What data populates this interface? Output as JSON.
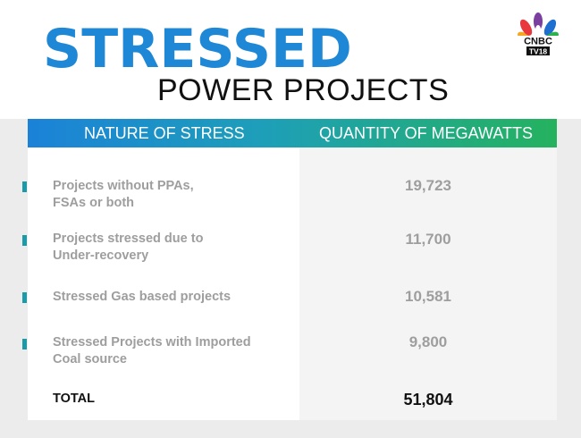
{
  "title": {
    "main": "STRESSED",
    "sub": "POWER PROJECTS"
  },
  "logo": {
    "line1": "CNBC",
    "line2": "TV18",
    "icon": "peacock-logo"
  },
  "table": {
    "headers": {
      "left": "NATURE OF STRESS",
      "right": "QUANTITY OF MEGAWATTS"
    },
    "rows": [
      {
        "label_line1": "Projects without PPAs,",
        "label_line2": "FSAs or both",
        "value": "19,723"
      },
      {
        "label_line1": "Projects stressed due to",
        "label_line2": "Under-recovery",
        "value": "11,700"
      },
      {
        "label_line1": "Stressed Gas based projects",
        "label_line2": "",
        "value": "10,581"
      },
      {
        "label_line1": "Stressed Projects with Imported",
        "label_line2": "Coal source",
        "value": "9,800"
      }
    ],
    "total": {
      "label": "TOTAL",
      "value": "51,804"
    }
  },
  "colors": {
    "title_blue": "#1e88d6",
    "header_gradient_start": "#1b82d8",
    "header_gradient_end": "#25b25e",
    "marker": "#1d9aa7",
    "muted_text": "#9e9e9e"
  }
}
